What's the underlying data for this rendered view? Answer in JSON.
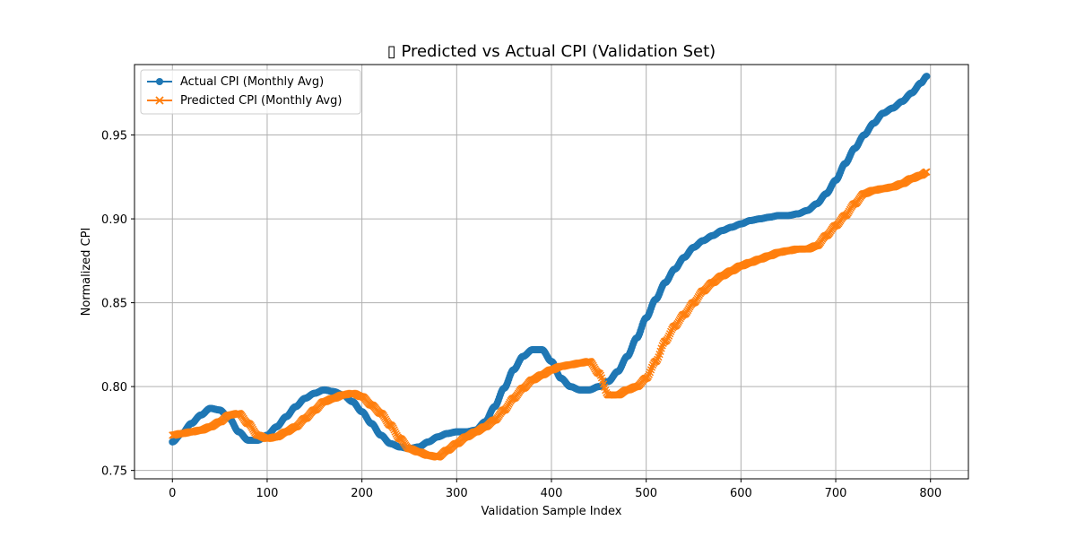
{
  "chart_data": {
    "type": "line",
    "title": "▯ Predicted vs Actual CPI (Validation Set)",
    "xlabel": "Validation Sample Index",
    "ylabel": "Normalized CPI",
    "xlim": [
      -40,
      840
    ],
    "ylim": [
      0.745,
      0.992
    ],
    "xticks": [
      0,
      100,
      200,
      300,
      400,
      500,
      600,
      700,
      800
    ],
    "yticks": [
      0.75,
      0.8,
      0.85,
      0.9,
      0.95
    ],
    "ytick_labels": [
      "0.75",
      "0.80",
      "0.85",
      "0.90",
      "0.95"
    ],
    "grid": true,
    "legend_position": "top-left",
    "series": [
      {
        "name": "Actual CPI (Monthly Avg)",
        "color": "#1f77b4",
        "marker": "circle",
        "x": [
          0,
          10,
          20,
          30,
          40,
          50,
          60,
          70,
          80,
          90,
          100,
          110,
          120,
          130,
          140,
          150,
          160,
          170,
          180,
          190,
          200,
          210,
          220,
          230,
          240,
          250,
          260,
          270,
          280,
          290,
          300,
          310,
          320,
          330,
          340,
          350,
          360,
          370,
          380,
          390,
          400,
          410,
          420,
          430,
          440,
          450,
          460,
          470,
          480,
          490,
          500,
          510,
          520,
          530,
          540,
          550,
          560,
          570,
          580,
          590,
          600,
          610,
          620,
          630,
          640,
          650,
          660,
          670,
          680,
          690,
          700,
          710,
          720,
          730,
          740,
          750,
          760,
          770,
          780,
          790,
          796
        ],
        "y": [
          0.767,
          0.772,
          0.778,
          0.783,
          0.787,
          0.786,
          0.781,
          0.773,
          0.768,
          0.768,
          0.771,
          0.776,
          0.782,
          0.788,
          0.793,
          0.796,
          0.798,
          0.797,
          0.795,
          0.791,
          0.785,
          0.778,
          0.771,
          0.766,
          0.764,
          0.763,
          0.764,
          0.767,
          0.77,
          0.772,
          0.773,
          0.773,
          0.774,
          0.779,
          0.788,
          0.799,
          0.81,
          0.818,
          0.822,
          0.822,
          0.815,
          0.805,
          0.8,
          0.798,
          0.798,
          0.8,
          0.803,
          0.809,
          0.818,
          0.829,
          0.841,
          0.852,
          0.862,
          0.87,
          0.877,
          0.883,
          0.887,
          0.89,
          0.893,
          0.895,
          0.897,
          0.899,
          0.9,
          0.901,
          0.902,
          0.902,
          0.903,
          0.905,
          0.909,
          0.915,
          0.923,
          0.933,
          0.942,
          0.95,
          0.957,
          0.963,
          0.966,
          0.97,
          0.975,
          0.981,
          0.985
        ]
      },
      {
        "name": "Predicted CPI (Monthly Avg)",
        "color": "#ff7f0e",
        "marker": "x",
        "x": [
          0,
          10,
          20,
          30,
          40,
          50,
          60,
          70,
          80,
          90,
          100,
          110,
          120,
          130,
          140,
          150,
          160,
          170,
          180,
          190,
          200,
          210,
          220,
          230,
          240,
          250,
          260,
          270,
          280,
          290,
          300,
          310,
          320,
          330,
          340,
          350,
          360,
          370,
          380,
          390,
          400,
          410,
          420,
          430,
          440,
          450,
          460,
          470,
          480,
          490,
          500,
          510,
          520,
          530,
          540,
          550,
          560,
          570,
          580,
          590,
          600,
          610,
          620,
          630,
          640,
          650,
          660,
          670,
          680,
          690,
          700,
          710,
          720,
          730,
          740,
          750,
          760,
          770,
          780,
          790,
          796
        ],
        "y": [
          0.771,
          0.772,
          0.773,
          0.774,
          0.776,
          0.779,
          0.783,
          0.784,
          0.778,
          0.771,
          0.769,
          0.77,
          0.773,
          0.776,
          0.781,
          0.786,
          0.791,
          0.793,
          0.795,
          0.796,
          0.794,
          0.789,
          0.784,
          0.777,
          0.769,
          0.763,
          0.761,
          0.759,
          0.758,
          0.762,
          0.766,
          0.77,
          0.773,
          0.776,
          0.78,
          0.786,
          0.793,
          0.799,
          0.804,
          0.807,
          0.81,
          0.812,
          0.813,
          0.814,
          0.815,
          0.808,
          0.795,
          0.795,
          0.798,
          0.8,
          0.805,
          0.815,
          0.827,
          0.836,
          0.843,
          0.85,
          0.857,
          0.862,
          0.866,
          0.869,
          0.872,
          0.874,
          0.876,
          0.878,
          0.88,
          0.881,
          0.882,
          0.882,
          0.884,
          0.89,
          0.896,
          0.902,
          0.909,
          0.915,
          0.917,
          0.918,
          0.919,
          0.921,
          0.924,
          0.926,
          0.928
        ]
      }
    ]
  }
}
